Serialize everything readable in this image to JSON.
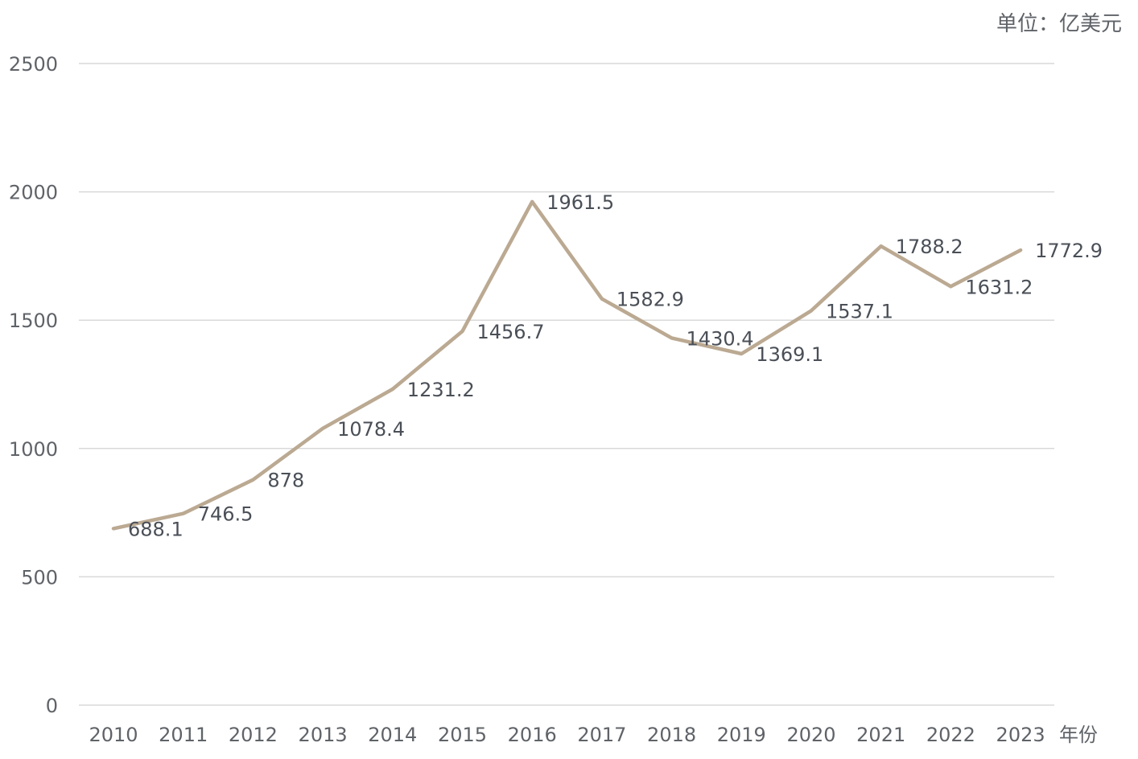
{
  "chart_data": {
    "type": "line",
    "unit_label": "单位：亿美元",
    "xlabel": "年份",
    "ylabel": "",
    "title": "",
    "ylim": [
      0,
      2500
    ],
    "y_ticks": [
      "0",
      "500",
      "1000",
      "1500",
      "2000",
      "2500"
    ],
    "grid": true,
    "legend": "none",
    "categories": [
      "2010",
      "2011",
      "2012",
      "2013",
      "2014",
      "2015",
      "2016",
      "2017",
      "2018",
      "2019",
      "2020",
      "2021",
      "2022",
      "2023"
    ],
    "series": [
      {
        "values": [
          688.1,
          746.5,
          878,
          1078.4,
          1231.2,
          1456.7,
          1961.5,
          1582.9,
          1430.4,
          1369.1,
          1537.1,
          1788.2,
          1631.2,
          1772.9
        ],
        "labels": [
          "688.1",
          "746.5",
          "878",
          "1078.4",
          "1231.2",
          "1456.7",
          "1961.5",
          "1582.9",
          "1430.4",
          "1369.1",
          "1537.1",
          "1788.2",
          "1631.2",
          "1772.9"
        ],
        "color": "#bba992"
      }
    ],
    "colors": {
      "grid": "#d9d9d9",
      "text": "#5f6368",
      "label": "#4a4f57"
    }
  }
}
